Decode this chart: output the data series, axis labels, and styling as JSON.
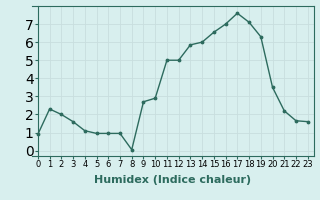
{
  "x": [
    0,
    1,
    2,
    3,
    4,
    5,
    6,
    7,
    8,
    9,
    10,
    11,
    12,
    13,
    14,
    15,
    16,
    17,
    18,
    19,
    20,
    21,
    22,
    23
  ],
  "y": [
    0.9,
    2.3,
    2.0,
    1.6,
    1.1,
    0.95,
    0.95,
    0.95,
    0.05,
    2.7,
    2.9,
    5.0,
    5.0,
    5.85,
    6.0,
    6.55,
    7.0,
    7.6,
    7.1,
    6.3,
    3.5,
    2.2,
    1.65,
    1.6
  ],
  "line_color": "#2d6b5e",
  "marker": ".",
  "marker_size": 3.5,
  "bg_color": "#d8efee",
  "grid_color": "#c8dede",
  "xlabel": "Humidex (Indice chaleur)",
  "ylim": [
    -0.3,
    8.0
  ],
  "xlim": [
    -0.5,
    23.5
  ],
  "yticks": [
    0,
    1,
    2,
    3,
    4,
    5,
    6,
    7
  ],
  "xticks": [
    0,
    1,
    2,
    3,
    4,
    5,
    6,
    7,
    8,
    9,
    10,
    11,
    12,
    13,
    14,
    15,
    16,
    17,
    18,
    19,
    20,
    21,
    22,
    23
  ],
  "tick_fontsize": 6,
  "xlabel_fontsize": 8,
  "linewidth": 1.0
}
